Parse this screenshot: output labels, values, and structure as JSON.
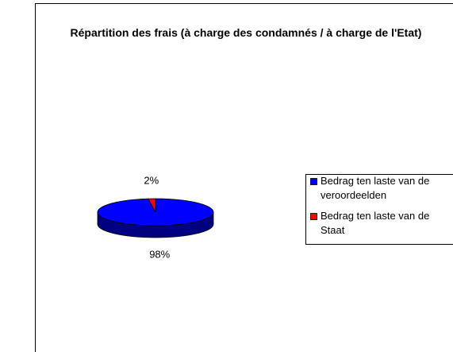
{
  "chart_data": {
    "type": "pie",
    "title": "Répartition des frais (à charge des condamnés / à charge de l'Etat)",
    "series": [
      {
        "name": "Bedrag ten laste van de veroordeelden",
        "color": "#0000ff"
      },
      {
        "name": "Bedrag ten laste van de Staat",
        "color": "#ff0000"
      }
    ],
    "values": [
      98,
      2
    ],
    "value_labels": [
      "98%",
      "2%"
    ],
    "legend": "right"
  }
}
